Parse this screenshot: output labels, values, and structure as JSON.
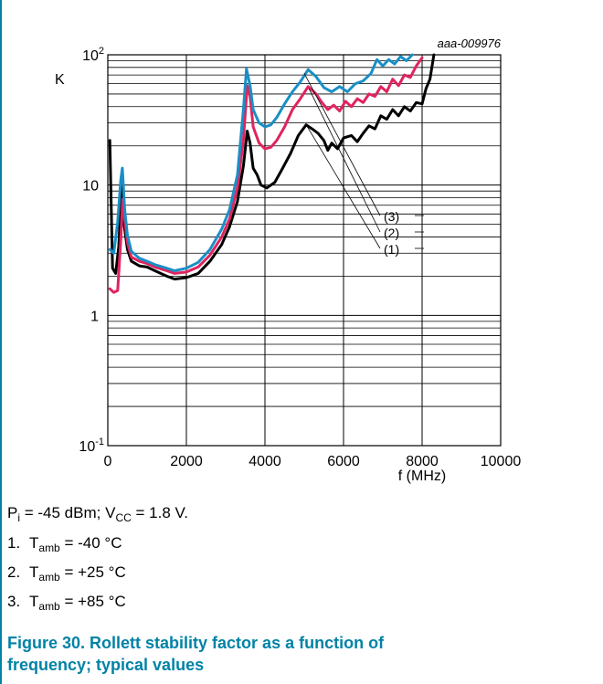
{
  "figure": {
    "doc_id": "aaa-009976",
    "title": "Figure 30.  Rollett stability factor as a function of frequency; typical values",
    "conditions": {
      "pi_label": "P",
      "pi_sub": "i",
      "pi_value": " = -45 dBm; V",
      "vcc_sub": "CC",
      "vcc_value": " = 1.8 V."
    },
    "legend_items": [
      {
        "num": "1.",
        "symbol": "T",
        "sub": "amb",
        "value": " = -40 °C"
      },
      {
        "num": "2.",
        "symbol": "T",
        "sub": "amb",
        "value": " = +25 °C"
      },
      {
        "num": "3.",
        "symbol": "T",
        "sub": "amb",
        "value": " = +85 °C"
      }
    ]
  },
  "chart_data": {
    "type": "line",
    "ylabel": "K",
    "xlabel": "f (MHz)",
    "xlim": [
      0,
      10000
    ],
    "ylim": [
      0.1,
      100
    ],
    "yscale": "log",
    "grid": true,
    "x_ticks": [
      "0",
      "2000",
      "4000",
      "6000",
      "8000",
      "10000"
    ],
    "y_ticks": [
      {
        "value": 100,
        "base": "10",
        "exp": "2"
      },
      {
        "value": 10,
        "base": "10",
        "exp": ""
      },
      {
        "value": 1,
        "base": "1",
        "exp": ""
      },
      {
        "value": 0.1,
        "base": "10",
        "exp": "-1"
      }
    ],
    "colors": {
      "1": "#000000",
      "2": "#e0245e",
      "3": "#1a8fc6"
    },
    "series": [
      {
        "name": "(1)",
        "points": [
          [
            50,
            22
          ],
          [
            120,
            2.3
          ],
          [
            200,
            2.1
          ],
          [
            280,
            3.4
          ],
          [
            350,
            10.5
          ],
          [
            420,
            4.8
          ],
          [
            500,
            3.2
          ],
          [
            600,
            2.6
          ],
          [
            800,
            2.4
          ],
          [
            1000,
            2.35
          ],
          [
            1200,
            2.2
          ],
          [
            1500,
            2.0
          ],
          [
            1700,
            1.9
          ],
          [
            2000,
            1.95
          ],
          [
            2300,
            2.1
          ],
          [
            2600,
            2.6
          ],
          [
            2900,
            3.5
          ],
          [
            3100,
            4.8
          ],
          [
            3300,
            7.5
          ],
          [
            3450,
            14
          ],
          [
            3550,
            26
          ],
          [
            3620,
            21
          ],
          [
            3700,
            13.5
          ],
          [
            3800,
            12
          ],
          [
            3900,
            10
          ],
          [
            4050,
            9.5
          ],
          [
            4250,
            10.5
          ],
          [
            4450,
            13.5
          ],
          [
            4650,
            17.5
          ],
          [
            4850,
            24
          ],
          [
            5050,
            29
          ],
          [
            5200,
            27
          ],
          [
            5350,
            25
          ],
          [
            5500,
            22
          ],
          [
            5600,
            18.5
          ],
          [
            5700,
            21
          ],
          [
            5850,
            19
          ],
          [
            6000,
            23
          ],
          [
            6200,
            24
          ],
          [
            6350,
            21.5
          ],
          [
            6500,
            25
          ],
          [
            6650,
            28.5
          ],
          [
            6800,
            27
          ],
          [
            6950,
            34
          ],
          [
            7100,
            32
          ],
          [
            7250,
            38
          ],
          [
            7400,
            34
          ],
          [
            7550,
            40
          ],
          [
            7700,
            37
          ],
          [
            7850,
            43
          ],
          [
            8000,
            42
          ],
          [
            8100,
            55
          ],
          [
            8200,
            65
          ],
          [
            8300,
            100
          ]
        ]
      },
      {
        "name": "(2)",
        "points": [
          [
            50,
            1.6
          ],
          [
            150,
            1.5
          ],
          [
            250,
            1.55
          ],
          [
            330,
            3.8
          ],
          [
            380,
            7.8
          ],
          [
            430,
            5.5
          ],
          [
            500,
            3.6
          ],
          [
            600,
            2.8
          ],
          [
            800,
            2.6
          ],
          [
            1000,
            2.5
          ],
          [
            1200,
            2.35
          ],
          [
            1500,
            2.2
          ],
          [
            1700,
            2.1
          ],
          [
            2000,
            2.15
          ],
          [
            2300,
            2.35
          ],
          [
            2600,
            2.9
          ],
          [
            2900,
            4.0
          ],
          [
            3100,
            5.5
          ],
          [
            3300,
            9.5
          ],
          [
            3450,
            22
          ],
          [
            3550,
            58
          ],
          [
            3620,
            48
          ],
          [
            3700,
            28
          ],
          [
            3850,
            21
          ],
          [
            4000,
            19
          ],
          [
            4150,
            19.5
          ],
          [
            4300,
            22
          ],
          [
            4500,
            28
          ],
          [
            4700,
            38
          ],
          [
            4900,
            46
          ],
          [
            5100,
            57
          ],
          [
            5300,
            50
          ],
          [
            5450,
            43
          ],
          [
            5600,
            38
          ],
          [
            5750,
            41
          ],
          [
            5900,
            37
          ],
          [
            6050,
            44
          ],
          [
            6200,
            40
          ],
          [
            6350,
            46
          ],
          [
            6500,
            43
          ],
          [
            6650,
            50
          ],
          [
            6800,
            48
          ],
          [
            6950,
            57
          ],
          [
            7100,
            52
          ],
          [
            7250,
            65
          ],
          [
            7400,
            58
          ],
          [
            7550,
            70
          ],
          [
            7700,
            67
          ],
          [
            7850,
            82
          ],
          [
            8000,
            95
          ]
        ]
      },
      {
        "name": "(3)",
        "points": [
          [
            50,
            3.2
          ],
          [
            150,
            3.0
          ],
          [
            250,
            5.2
          ],
          [
            330,
            11
          ],
          [
            370,
            13.5
          ],
          [
            430,
            6.5
          ],
          [
            500,
            4.1
          ],
          [
            600,
            3.1
          ],
          [
            800,
            2.75
          ],
          [
            1000,
            2.6
          ],
          [
            1200,
            2.45
          ],
          [
            1500,
            2.3
          ],
          [
            1700,
            2.2
          ],
          [
            2000,
            2.3
          ],
          [
            2300,
            2.55
          ],
          [
            2600,
            3.2
          ],
          [
            2900,
            4.6
          ],
          [
            3100,
            6.5
          ],
          [
            3300,
            12
          ],
          [
            3450,
            38
          ],
          [
            3530,
            78
          ],
          [
            3620,
            58
          ],
          [
            3700,
            38
          ],
          [
            3850,
            30
          ],
          [
            4000,
            28
          ],
          [
            4150,
            29
          ],
          [
            4300,
            33
          ],
          [
            4500,
            42
          ],
          [
            4700,
            52
          ],
          [
            4900,
            62
          ],
          [
            5100,
            77
          ],
          [
            5300,
            68
          ],
          [
            5500,
            56
          ],
          [
            5700,
            52
          ],
          [
            5900,
            57
          ],
          [
            6100,
            52
          ],
          [
            6300,
            60
          ],
          [
            6500,
            63
          ],
          [
            6700,
            72
          ],
          [
            6850,
            92
          ],
          [
            7000,
            82
          ],
          [
            7150,
            92
          ],
          [
            7300,
            85
          ],
          [
            7450,
            97
          ],
          [
            7600,
            90
          ],
          [
            7750,
            100
          ]
        ]
      }
    ]
  }
}
